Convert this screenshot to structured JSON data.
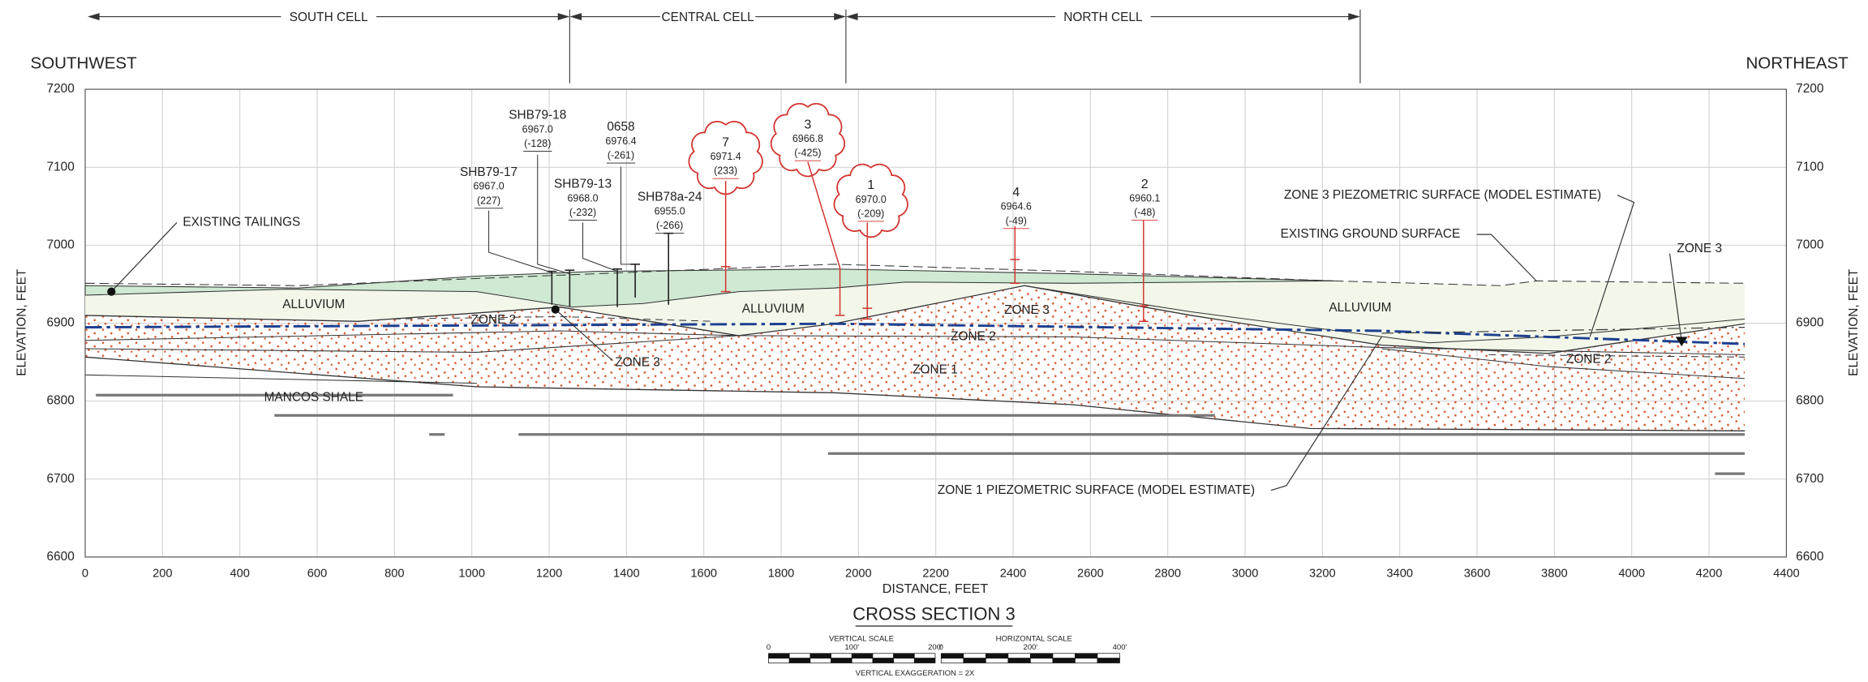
{
  "header": {
    "cells": [
      "SOUTH CELL",
      "CENTRAL CELL",
      "NORTH CELL"
    ],
    "left": "SOUTHWEST",
    "right": "NORTHEAST"
  },
  "axes": {
    "x_label": "DISTANCE, FEET",
    "y_label": "ELEVATION, FEET",
    "xlim": [
      0,
      4400
    ],
    "xticks": [
      0,
      200,
      400,
      600,
      800,
      1000,
      1200,
      1400,
      1600,
      1800,
      2000,
      2200,
      2400,
      2600,
      2800,
      3000,
      3200,
      3400,
      3600,
      3800,
      4000,
      4200,
      4400
    ],
    "ylim": [
      6600,
      7200
    ],
    "yticks": [
      6600,
      6700,
      6800,
      6900,
      7000,
      7100,
      7200
    ]
  },
  "boreholes": [
    {
      "name": "SHB79-17",
      "elevation": "6967.0",
      "depth": "(227)"
    },
    {
      "name": "SHB79-18",
      "elevation": "6967.0",
      "depth": "(-128)"
    },
    {
      "name": "SHB79-13",
      "elevation": "6968.0",
      "depth": "(-232)"
    },
    {
      "name": "0658",
      "elevation": "6976.4",
      "depth": "(-261)"
    },
    {
      "name": "SHB78a-24",
      "elevation": "6955.0",
      "depth": "(-266)"
    }
  ],
  "wells": [
    {
      "id": "7",
      "elevation": "6971.4",
      "depth": "(233)"
    },
    {
      "id": "3",
      "elevation": "6966.8",
      "depth": "(-425)"
    },
    {
      "id": "1",
      "elevation": "6970.0",
      "depth": "(-209)"
    },
    {
      "id": "4",
      "elevation": "6964.6",
      "depth": "(-49)"
    },
    {
      "id": "2",
      "elevation": "6960.1",
      "depth": "(-48)"
    }
  ],
  "annotations": [
    "EXISTING TAILINGS",
    "ALLUVIUM",
    "ALLUVIUM",
    "ALLUVIUM",
    "ZONE 2",
    "ZONE 2",
    "ZONE 2",
    "ZONE 3",
    "ZONE 3",
    "ZONE 3",
    "ZONE 1",
    "MANCOS SHALE",
    "ZONE 3 PIEZOMETRIC SURFACE (MODEL ESTIMATE)",
    "EXISTING GROUND SURFACE",
    "ZONE 1 PIEZOMETRIC SURFACE (MODEL ESTIMATE)"
  ],
  "footer": {
    "title": "CROSS SECTION 3",
    "vertical_scale": "VERTICAL SCALE",
    "vertical_ticks": [
      "0",
      "100'",
      "200'"
    ],
    "horizontal_scale": "HORIZONTAL SCALE",
    "horizontal_ticks": [
      "0",
      "200'",
      "400'"
    ],
    "exaggeration": "VERTICAL EXAGGERATION = 2X"
  }
}
